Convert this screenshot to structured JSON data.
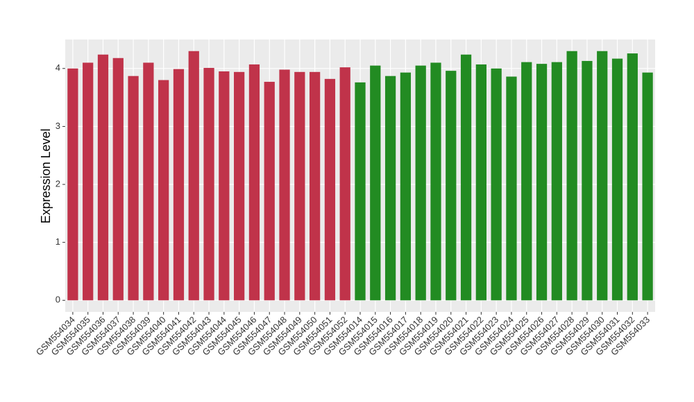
{
  "chart_data": {
    "type": "bar",
    "ylabel": "Expression Level",
    "categories": [
      "GSM554034",
      "GSM554035",
      "GSM554036",
      "GSM554037",
      "GSM554038",
      "GSM554039",
      "GSM554040",
      "GSM554041",
      "GSM554042",
      "GSM554043",
      "GSM554044",
      "GSM554045",
      "GSM554046",
      "GSM554047",
      "GSM554048",
      "GSM554049",
      "GSM554050",
      "GSM554051",
      "GSM554052",
      "GSM554014",
      "GSM554015",
      "GSM554016",
      "GSM554017",
      "GSM554018",
      "GSM554019",
      "GSM554020",
      "GSM554021",
      "GSM554022",
      "GSM554023",
      "GSM554024",
      "GSM554025",
      "GSM554026",
      "GSM554027",
      "GSM554028",
      "GSM554029",
      "GSM554030",
      "GSM554031",
      "GSM554032",
      "GSM554033"
    ],
    "values": [
      4.0,
      4.1,
      4.24,
      4.18,
      3.87,
      4.1,
      3.8,
      3.99,
      4.3,
      4.01,
      3.95,
      3.94,
      4.07,
      3.77,
      3.98,
      3.94,
      3.94,
      3.82,
      4.02,
      3.76,
      4.05,
      3.87,
      3.93,
      4.05,
      4.1,
      3.96,
      4.24,
      4.07,
      4.0,
      3.86,
      4.11,
      4.08,
      4.11,
      4.3,
      4.13,
      4.3,
      4.17,
      4.26,
      3.93
    ],
    "colors": [
      "#c0334a",
      "#c0334a",
      "#c0334a",
      "#c0334a",
      "#c0334a",
      "#c0334a",
      "#c0334a",
      "#c0334a",
      "#c0334a",
      "#c0334a",
      "#c0334a",
      "#c0334a",
      "#c0334a",
      "#c0334a",
      "#c0334a",
      "#c0334a",
      "#c0334a",
      "#c0334a",
      "#c0334a",
      "#228b22",
      "#228b22",
      "#228b22",
      "#228b22",
      "#228b22",
      "#228b22",
      "#228b22",
      "#228b22",
      "#228b22",
      "#228b22",
      "#228b22",
      "#228b22",
      "#228b22",
      "#228b22",
      "#228b22",
      "#228b22",
      "#228b22",
      "#228b22",
      "#228b22",
      "#228b22"
    ],
    "ylim": [
      -0.2,
      4.5
    ],
    "yticks": [
      0,
      1,
      2,
      3,
      4
    ],
    "grid": true
  }
}
